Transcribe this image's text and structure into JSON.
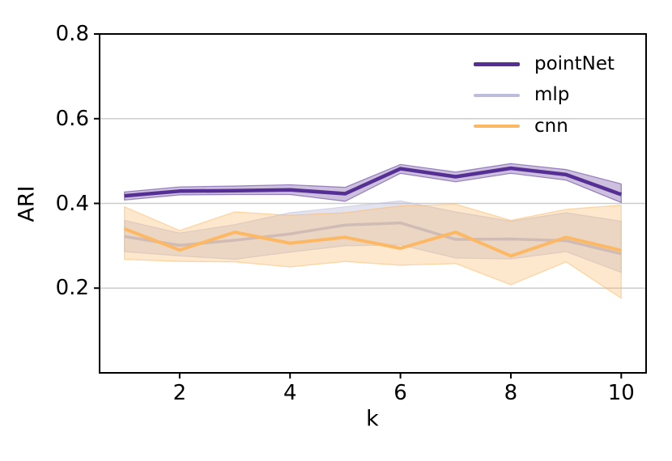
{
  "figure": {
    "background": "#ffffff",
    "text_color": "#000000",
    "spine_color": "#000000"
  },
  "chart_data": {
    "type": "line",
    "title": "",
    "xlabel": "k",
    "ylabel": "ARI",
    "xlim": [
      0.55,
      10.45
    ],
    "ylim": [
      0,
      0.8
    ],
    "grid": {
      "axis": "y",
      "on": true,
      "color": "#cccccc",
      "gridline_values": [
        0.2,
        0.4,
        0.6
      ]
    },
    "xticks": {
      "values": [
        2,
        4,
        6,
        8,
        10
      ],
      "labels": [
        "2",
        "4",
        "6",
        "8",
        "10"
      ]
    },
    "yticks": {
      "values": [
        0.2,
        0.4,
        0.6,
        0.8
      ],
      "labels": [
        "0.2",
        "0.4",
        "0.6",
        "0.8"
      ]
    },
    "legend": {
      "position": "upper right",
      "frame": false,
      "entries": [
        "pointNet",
        "mlp",
        "cnn"
      ]
    },
    "x": [
      1,
      2,
      3,
      4,
      5,
      6,
      7,
      8,
      9,
      10
    ],
    "series": [
      {
        "name": "pointNet",
        "color": "#552f93",
        "line_width": 4.5,
        "band_alpha": 0.3,
        "values": [
          0.418,
          0.429,
          0.43,
          0.432,
          0.423,
          0.482,
          0.463,
          0.483,
          0.468,
          0.421
        ],
        "band_low": [
          0.408,
          0.42,
          0.421,
          0.421,
          0.405,
          0.471,
          0.451,
          0.471,
          0.455,
          0.402
        ],
        "band_high": [
          0.427,
          0.439,
          0.441,
          0.444,
          0.438,
          0.492,
          0.474,
          0.494,
          0.48,
          0.446
        ]
      },
      {
        "name": "mlp",
        "color": "#bcbddc",
        "line_width": 3.5,
        "band_alpha": 0.42,
        "values": [
          0.322,
          0.301,
          0.313,
          0.328,
          0.349,
          0.354,
          0.315,
          0.316,
          0.312,
          0.281
        ],
        "band_low": [
          0.286,
          0.276,
          0.268,
          0.285,
          0.3,
          0.302,
          0.271,
          0.269,
          0.286,
          0.237
        ],
        "band_high": [
          0.36,
          0.33,
          0.35,
          0.378,
          0.392,
          0.406,
          0.38,
          0.358,
          0.378,
          0.358
        ]
      },
      {
        "name": "cnn",
        "color": "#fdb863",
        "line_width": 4,
        "band_alpha": 0.32,
        "values": [
          0.34,
          0.29,
          0.332,
          0.306,
          0.32,
          0.294,
          0.332,
          0.276,
          0.32,
          0.289
        ],
        "band_low": [
          0.268,
          0.263,
          0.262,
          0.25,
          0.263,
          0.254,
          0.258,
          0.208,
          0.262,
          0.176
        ],
        "band_high": [
          0.392,
          0.336,
          0.38,
          0.372,
          0.378,
          0.394,
          0.398,
          0.36,
          0.386,
          0.396
        ]
      }
    ]
  }
}
